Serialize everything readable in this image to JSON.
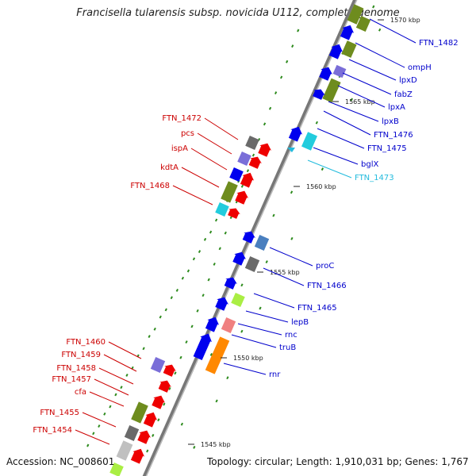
{
  "title": "Francisella tularensis subsp. novicida U112, complete genome",
  "footer": {
    "accession": "Accession: NC_008601",
    "summary": "Topology: circular; Length: 1,910,031 bp; Genes: 1,767"
  },
  "colors": {
    "forward_gene": "#0000ee",
    "reverse_gene": "#ee0000",
    "olive_feature": "#6e8c1e",
    "lavender_feature": "#7a6ed8",
    "grey_feature": "#6a6a6a",
    "light_grey_feature": "#c0c0c0",
    "cyan_feature": "#22ccdd",
    "orange_feature": "#ff8800",
    "pink_feature": "#f08080",
    "lime_feature": "#aaee44",
    "steel_feature": "#4a7fbf",
    "backbone": "#999999",
    "gc_dots": "#2e8b1e"
  },
  "scale_labels": [
    "1570 kbp",
    "1565 kbp",
    "1560 kbp",
    "1555 kbp",
    "1550 kbp",
    "1545 kbp"
  ],
  "forward_labels": [
    {
      "text": "FTN_1482",
      "color": "#0000cc"
    },
    {
      "text": "ompH",
      "color": "#0000cc"
    },
    {
      "text": "lpxD",
      "color": "#0000cc"
    },
    {
      "text": "fabZ",
      "color": "#0000cc"
    },
    {
      "text": "lpxA",
      "color": "#0000cc"
    },
    {
      "text": "lpxB",
      "color": "#0000cc"
    },
    {
      "text": "FTN_1476",
      "color": "#0000cc"
    },
    {
      "text": "FTN_1475",
      "color": "#0000cc"
    },
    {
      "text": "bglX",
      "color": "#0000cc"
    },
    {
      "text": "FTN_1473",
      "color": "#22bbdd"
    },
    {
      "text": "proC",
      "color": "#0000cc"
    },
    {
      "text": "FTN_1466",
      "color": "#0000cc"
    },
    {
      "text": "FTN_1465",
      "color": "#0000cc"
    },
    {
      "text": "lepB",
      "color": "#0000cc"
    },
    {
      "text": "rnc",
      "color": "#0000cc"
    },
    {
      "text": "truB",
      "color": "#0000cc"
    },
    {
      "text": "rnr",
      "color": "#0000cc"
    }
  ],
  "reverse_labels": [
    {
      "text": "FTN_1472",
      "color": "#cc0000"
    },
    {
      "text": "pcs",
      "color": "#cc0000"
    },
    {
      "text": "ispA",
      "color": "#cc0000"
    },
    {
      "text": "kdtA",
      "color": "#cc0000"
    },
    {
      "text": "FTN_1468",
      "color": "#cc0000"
    },
    {
      "text": "FTN_1460",
      "color": "#cc0000"
    },
    {
      "text": "FTN_1459",
      "color": "#cc0000"
    },
    {
      "text": "FTN_1458",
      "color": "#cc0000"
    },
    {
      "text": "FTN_1457",
      "color": "#cc0000"
    },
    {
      "text": "cfa",
      "color": "#cc0000"
    },
    {
      "text": "FTN_1455",
      "color": "#cc0000"
    },
    {
      "text": "FTN_1454",
      "color": "#cc0000"
    }
  ]
}
